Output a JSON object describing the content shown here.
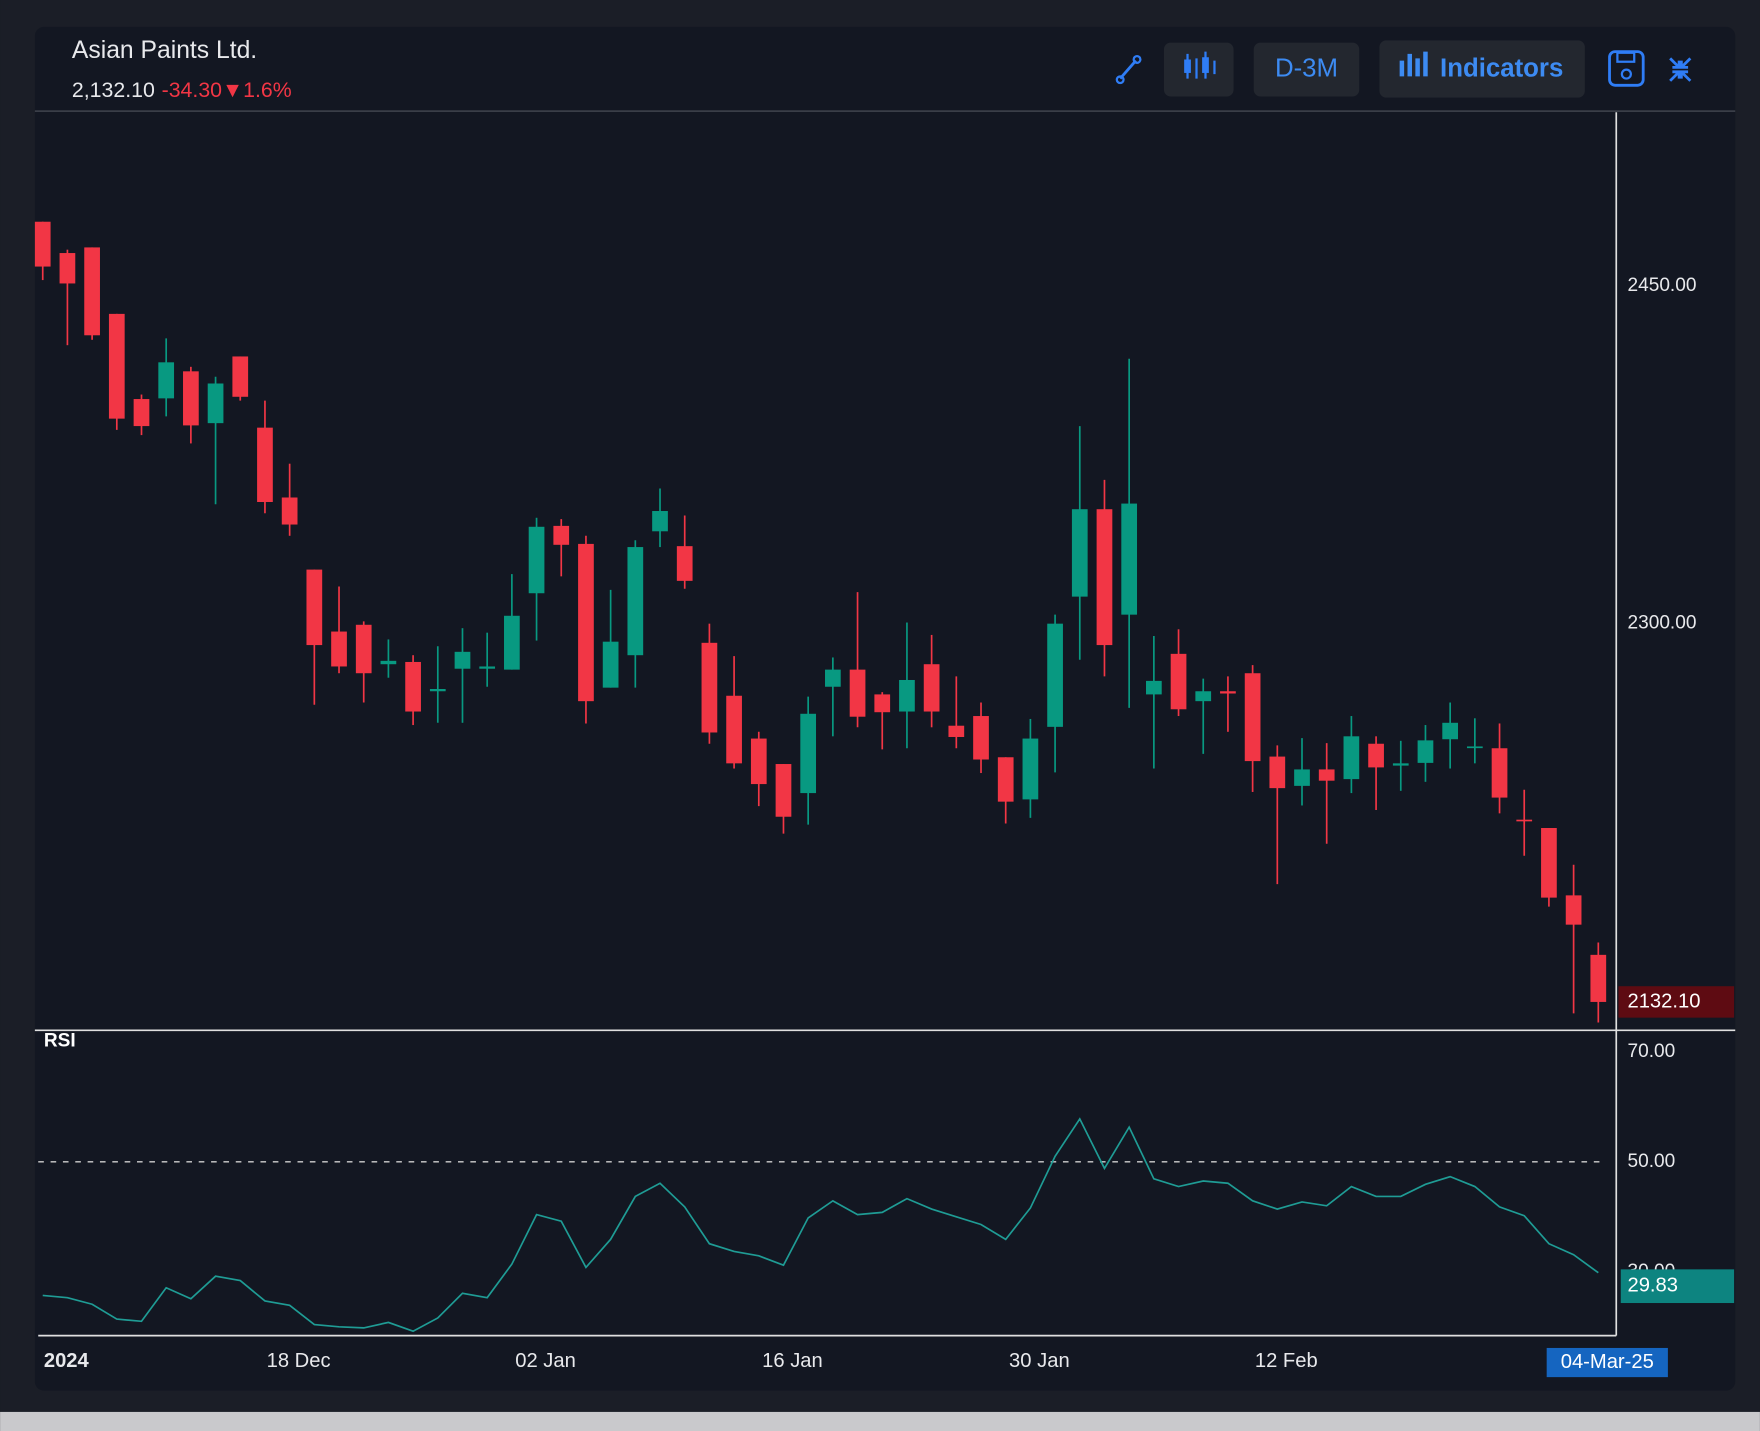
{
  "header": {
    "title": "Asian Paints Ltd.",
    "last_price": "2,132.10",
    "change": "-34.30",
    "change_percent": "▼1.6%"
  },
  "toolbar": {
    "interval": "D-3M",
    "indicators": "Indicators"
  },
  "chart_data": [
    {
      "type": "candlestick",
      "up_color": "#089981",
      "down_color": "#f23645",
      "categories": [
        "2024",
        null,
        null,
        null,
        null,
        null,
        null,
        null,
        null,
        null,
        "18 Dec",
        null,
        null,
        null,
        null,
        null,
        null,
        null,
        null,
        null,
        "02 Jan",
        null,
        null,
        null,
        null,
        null,
        null,
        null,
        null,
        null,
        "16 Jan",
        null,
        null,
        null,
        null,
        null,
        null,
        null,
        null,
        null,
        "30 Jan",
        null,
        null,
        null,
        null,
        null,
        null,
        null,
        null,
        null,
        "12 Feb",
        null,
        null,
        null,
        null,
        null,
        null,
        null,
        null,
        null,
        null,
        null,
        null,
        "04-Mar-25"
      ],
      "open": [
        2478.4,
        2464.5,
        2467,
        2437.5,
        2399.7,
        2400,
        2412,
        2389,
        2418.6,
        2387,
        2356,
        2324,
        2296.5,
        2299.5,
        2282,
        2283,
        2270,
        2280,
        2280,
        2279.6,
        2313.5,
        2343.4,
        2335.4,
        2271.6,
        2286,
        2341,
        2334.4,
        2291.5,
        2268,
        2249,
        2237.7,
        2224.8,
        2272,
        2279.6,
        2268.6,
        2261,
        2282,
        2254.7,
        2259,
        2240.7,
        2222,
        2254.2,
        2312,
        2350.8,
        2304,
        2268.6,
        2286.6,
        2265.6,
        2270,
        2278,
        2241,
        2228,
        2235.3,
        2231,
        2246.7,
        2237,
        2238.2,
        2248.7,
        2245,
        2244.7,
        2213,
        2209.3,
        2179.4,
        2153
      ],
      "high": [
        2478.4,
        2466,
        2467,
        2437.5,
        2401.7,
        2426.6,
        2414,
        2409.6,
        2418.6,
        2399,
        2371,
        2324,
        2316.5,
        2301,
        2293,
        2286,
        2290,
        2298,
        2296,
        2322,
        2347,
        2346.4,
        2339,
        2315,
        2337,
        2360,
        2348,
        2300,
        2285.6,
        2252,
        2237.7,
        2267.6,
        2285,
        2314,
        2269.6,
        2300.5,
        2295,
        2276.6,
        2265,
        2240.7,
        2257.7,
        2304,
        2387.7,
        2363.8,
        2417.6,
        2294.5,
        2297.5,
        2275.6,
        2276.6,
        2281.6,
        2246,
        2249.2,
        2247,
        2259,
        2250,
        2248,
        2255,
        2265,
        2258,
        2255.7,
        2226.3,
        2209.3,
        2193,
        2158.5
      ],
      "low": [
        2452.5,
        2423.6,
        2426,
        2386,
        2383.7,
        2392,
        2380,
        2353,
        2399,
        2349,
        2339,
        2264,
        2278,
        2265,
        2276,
        2255,
        2256,
        2256,
        2272,
        2279.6,
        2292.5,
        2321,
        2255.7,
        2271.6,
        2271.6,
        2334,
        2315.5,
        2246.7,
        2235.7,
        2219,
        2206.8,
        2210.8,
        2250,
        2254,
        2244.2,
        2244.7,
        2254,
        2244.7,
        2233.7,
        2211.3,
        2213.8,
        2234,
        2284,
        2276.6,
        2262.6,
        2235.7,
        2259,
        2242.2,
        2252,
        2225.3,
        2184.4,
        2219.3,
        2202.3,
        2224.8,
        2217.3,
        2225.8,
        2229.8,
        2235.7,
        2238,
        2215.8,
        2197,
        2174.4,
        2127,
        2123
      ],
      "close": [
        2458.5,
        2451,
        2428,
        2391,
        2387.7,
        2416,
        2388,
        2406.6,
        2400.7,
        2354,
        2344,
        2290.5,
        2281,
        2278,
        2283.5,
        2261,
        2271,
        2287.5,
        2281,
        2303.5,
        2343,
        2335,
        2265.6,
        2292,
        2334,
        2350,
        2319,
        2251.7,
        2238,
        2228.8,
        2214.3,
        2260,
        2279.6,
        2258.7,
        2260.7,
        2275,
        2261,
        2249.7,
        2239.7,
        2221,
        2249,
        2300,
        2350.8,
        2290.5,
        2353.3,
        2274.6,
        2262,
        2270,
        2269,
        2239,
        2227,
        2235.3,
        2230.3,
        2250,
        2236.2,
        2238,
        2248.2,
        2256,
        2245.5,
        2222.8,
        2212.5,
        2178.4,
        2166.4,
        2132.1
      ],
      "last_label": "2132.10",
      "ylim": [
        2120,
        2527
      ],
      "yticks": [
        {
          "value": 2450,
          "label": "2450.00"
        },
        {
          "value": 2300,
          "label": "2300.00"
        }
      ],
      "grid": true
    },
    {
      "type": "line",
      "title": "RSI",
      "color": "#1f9c95",
      "values": [
        25.7,
        25.3,
        24.1,
        21.4,
        21,
        27.1,
        25.1,
        29.2,
        28.4,
        24.7,
        23.9,
        20.4,
        20,
        19.8,
        20.8,
        19.2,
        21.6,
        26.1,
        25.3,
        31.4,
        40.4,
        39.2,
        30.8,
        35.9,
        43.7,
        46.1,
        41.8,
        35.1,
        33.7,
        32.9,
        31.2,
        39.8,
        42.9,
        40.4,
        40.8,
        43.3,
        41.4,
        40,
        38.6,
        35.9,
        41.6,
        51,
        57.8,
        48.8,
        56.3,
        46.9,
        45.5,
        46.5,
        46.1,
        42.9,
        41.4,
        42.7,
        42,
        45.5,
        43.7,
        43.7,
        45.9,
        47.3,
        45.5,
        41.8,
        40.2,
        35.1,
        33.1,
        29.83
      ],
      "last_label": "29.83",
      "ylim": [
        18.4,
        73.9
      ],
      "yticks": [
        {
          "value": 70,
          "label": "70.00"
        },
        {
          "value": 50,
          "label": "50.00"
        },
        {
          "value": 30,
          "label": "30.00"
        }
      ],
      "reference_line": 50
    }
  ]
}
